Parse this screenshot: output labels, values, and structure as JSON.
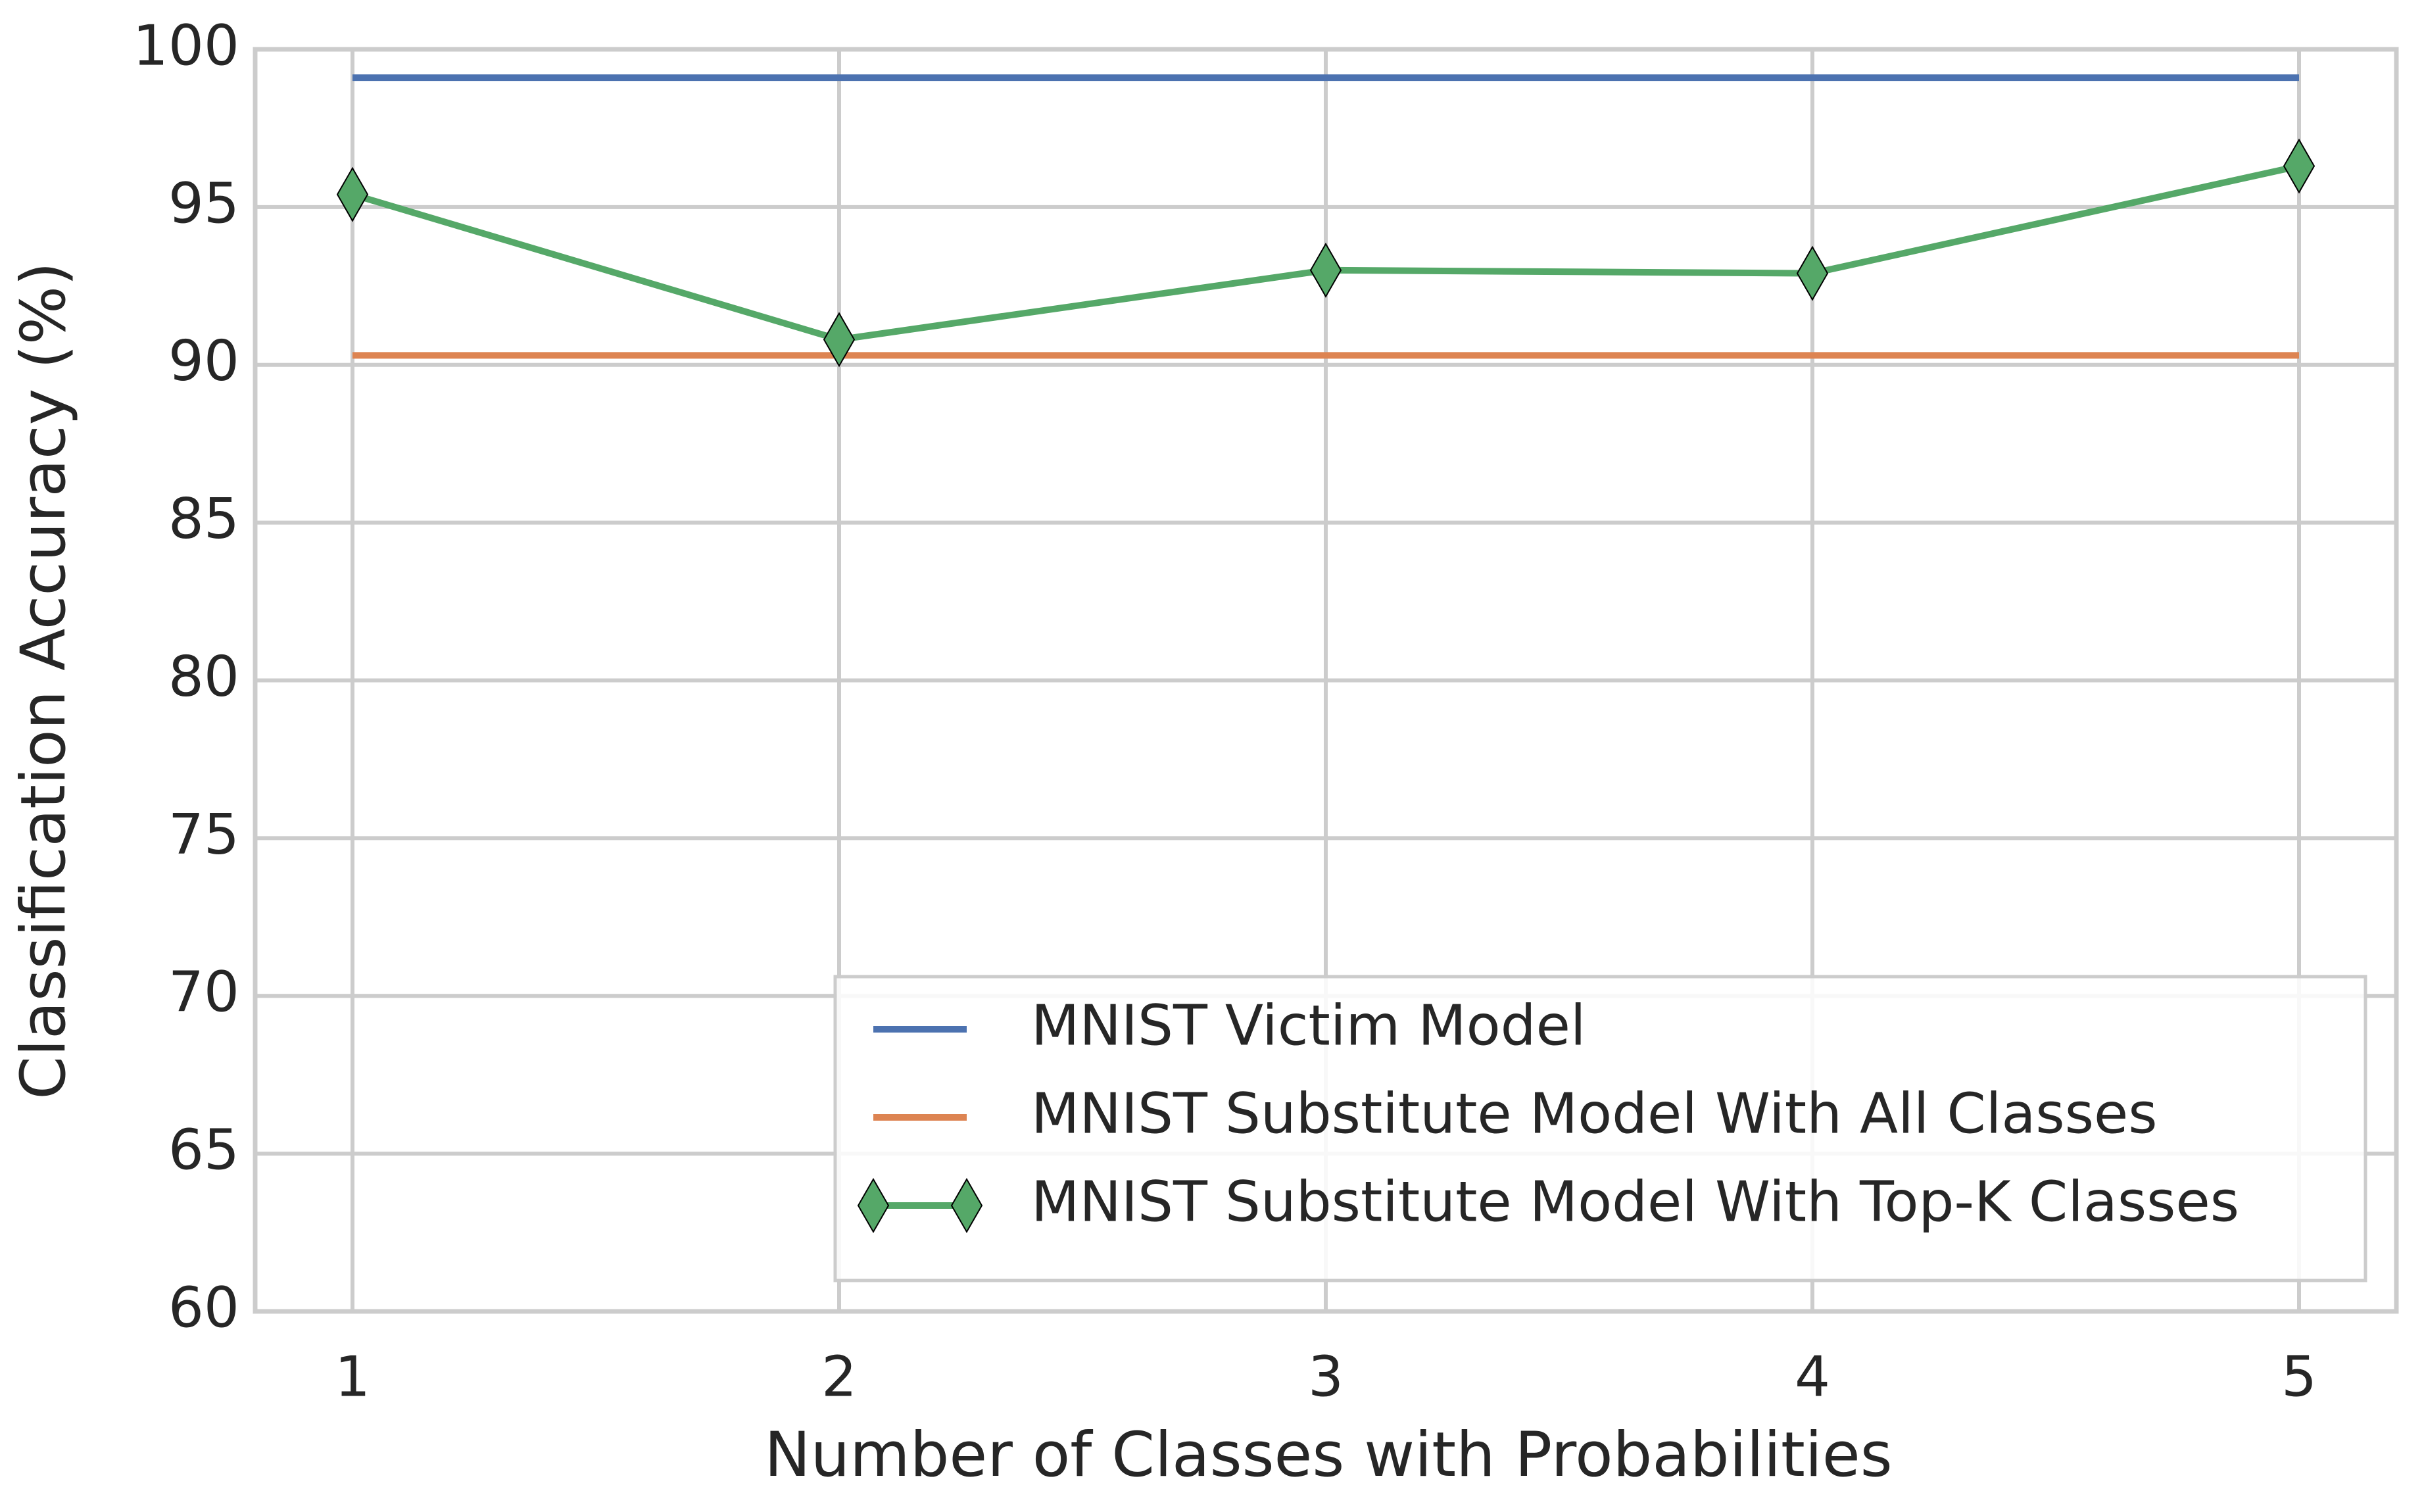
{
  "chart_data": {
    "type": "line",
    "xlabel": "Number of Classes with Probabilities",
    "ylabel": "Classification Accuracy (%)",
    "x": [
      1,
      2,
      3,
      4,
      5
    ],
    "series": [
      {
        "name": "MNIST Victim Model",
        "color": "#4c72b0",
        "values": [
          99.1,
          99.1,
          99.1,
          99.1,
          99.1
        ]
      },
      {
        "name": "MNIST Substitute Model With All Classes",
        "color": "#dd8452",
        "values": [
          90.3,
          90.3,
          90.3,
          90.3,
          90.3
        ]
      },
      {
        "name": "MNIST Substitute Model With Top-K Classes",
        "color": "#55a868",
        "marker": "diamond",
        "values": [
          95.4,
          90.8,
          93.0,
          92.9,
          96.3
        ]
      }
    ],
    "xlim": [
      0.8,
      5.2
    ],
    "xticks": [
      1,
      2,
      3,
      4,
      5
    ],
    "ylim": [
      60,
      100
    ],
    "yticks": [
      60,
      65,
      70,
      75,
      80,
      85,
      90,
      95,
      100
    ],
    "grid": true,
    "legend": "lower right"
  }
}
